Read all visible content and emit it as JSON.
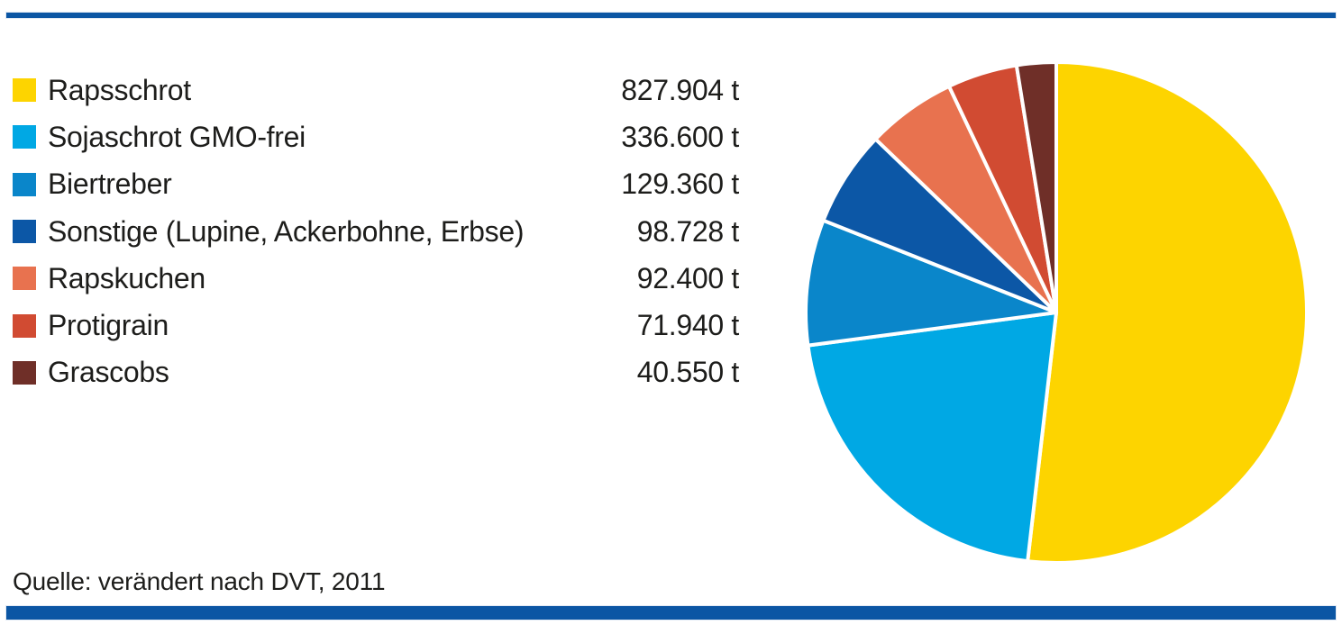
{
  "accent_color": "#0B56A4",
  "background_color": "#ffffff",
  "source": {
    "text": "Quelle: verändert nach DVT, 2011"
  },
  "chart_data": {
    "type": "pie",
    "title": "",
    "unit": "t",
    "legend_position": "left",
    "start_angle_deg": 0,
    "direction": "clockwise",
    "slice_gap_stroke": "#ffffff",
    "total": 1597482,
    "items": [
      {
        "label": "Rapsschrot",
        "value": 827904,
        "display": "827.904 t",
        "percent": 51.8,
        "color": "#FDD400"
      },
      {
        "label": "Sojaschrot GMO-frei",
        "value": 336600,
        "display": "336.600 t",
        "percent": 21.1,
        "color": "#00A8E4"
      },
      {
        "label": "Biertreber",
        "value": 129360,
        "display": "129.360 t",
        "percent": 8.1,
        "color": "#0A86CA"
      },
      {
        "label": "Sonstige (Lupine, Ackerbohne, Erbse)",
        "value": 98728,
        "display": "98.728 t",
        "percent": 6.2,
        "color": "#0C57A6"
      },
      {
        "label": "Rapskuchen",
        "value": 92400,
        "display": "92.400 t",
        "percent": 5.8,
        "color": "#E8724F"
      },
      {
        "label": "Protigrain",
        "value": 71940,
        "display": "71.940 t",
        "percent": 4.5,
        "color": "#D14B32"
      },
      {
        "label": "Grascobs",
        "value": 40550,
        "display": "40.550 t",
        "percent": 2.5,
        "color": "#6F2F28"
      }
    ]
  }
}
